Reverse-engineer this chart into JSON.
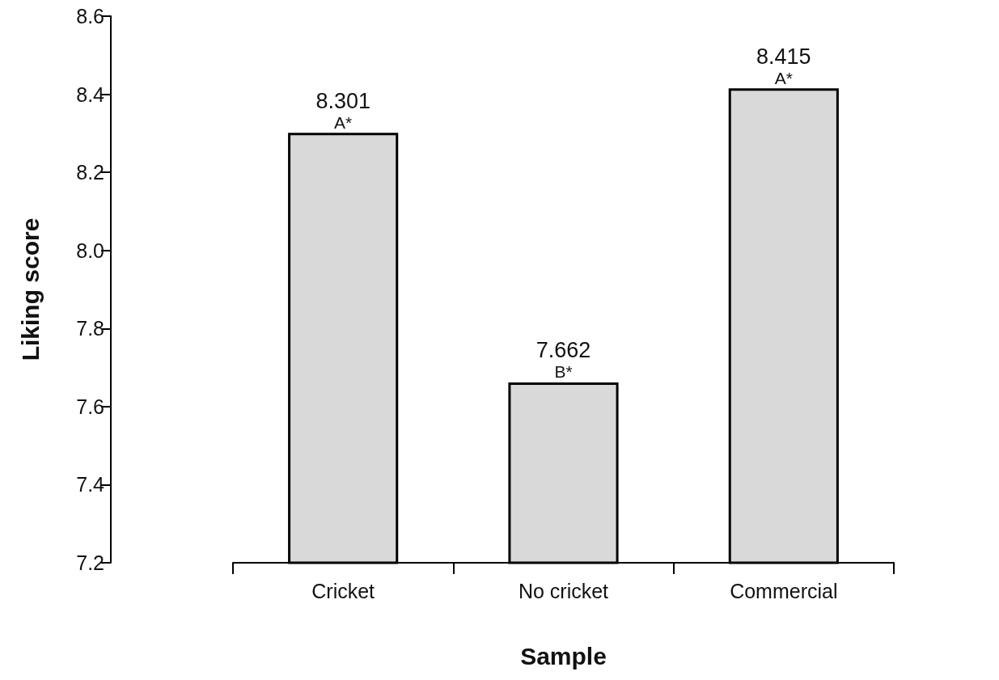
{
  "chart_data": {
    "type": "bar",
    "categories": [
      "Cricket",
      "No cricket",
      "Commercial"
    ],
    "values": [
      8.301,
      7.662,
      8.415
    ],
    "color": "#d9d9d9",
    "data_labels": true,
    "annotations": [
      {
        "text": "A*",
        "x": "Cricket",
        "y": 8.301
      },
      {
        "text": "B*",
        "x": "No cricket",
        "y": 7.662
      },
      {
        "text": "A*",
        "x": "Commercial",
        "y": 8.415
      }
    ],
    "xlabel": "Sample",
    "ylabel": "Liking score",
    "ylim": [
      7.2,
      8.6
    ],
    "yticks": [
      {
        "value": 7.2,
        "label": "7.2"
      },
      {
        "value": 7.4,
        "label": "7.4"
      },
      {
        "value": 7.6,
        "label": "7.6"
      },
      {
        "value": 7.8,
        "label": "7.8"
      },
      {
        "value": 8.0,
        "label": "8.0"
      },
      {
        "value": 8.2,
        "label": "8.2"
      },
      {
        "value": 8.4,
        "label": "8.4"
      },
      {
        "value": 8.6,
        "label": "8.6"
      }
    ],
    "grid": false
  }
}
